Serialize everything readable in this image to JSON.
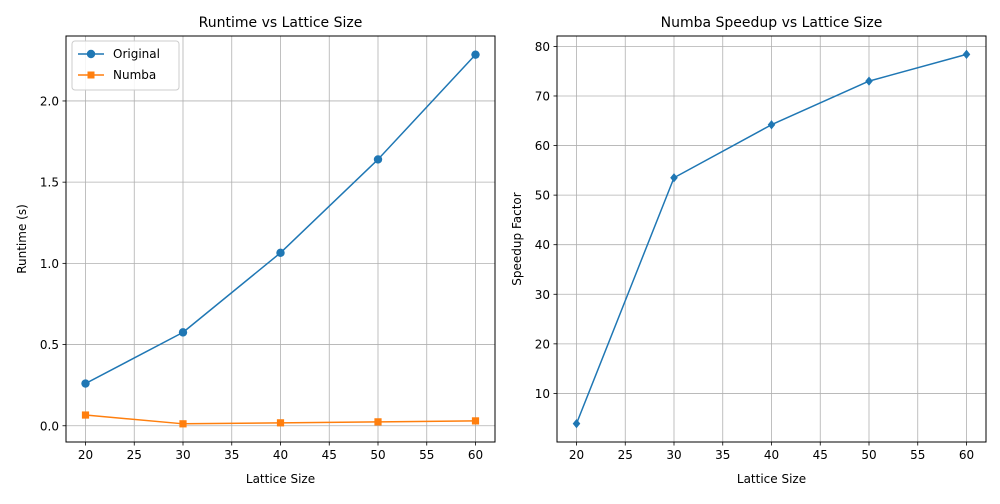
{
  "chart_data": [
    {
      "type": "line",
      "title": "Runtime vs Lattice Size",
      "xlabel": "Lattice Size",
      "ylabel": "Runtime (s)",
      "x": [
        20,
        30,
        40,
        50,
        60
      ],
      "series": [
        {
          "name": "Original",
          "values": [
            0.26,
            0.575,
            1.065,
            1.64,
            2.285
          ],
          "color": "#1f77b4",
          "marker": "circle"
        },
        {
          "name": "Numba",
          "values": [
            0.066,
            0.012,
            0.018,
            0.024,
            0.03
          ],
          "color": "#ff7f0e",
          "marker": "square"
        }
      ],
      "xlim": [
        18,
        62
      ],
      "ylim": [
        -0.1,
        2.4
      ],
      "xticks": [
        20,
        25,
        30,
        35,
        40,
        45,
        50,
        55,
        60
      ],
      "yticks": [
        0.0,
        0.5,
        1.0,
        1.5,
        2.0
      ],
      "ytick_labels": [
        "0.0",
        "0.5",
        "1.0",
        "1.5",
        "2.0"
      ],
      "grid": true,
      "legend": "upper-left"
    },
    {
      "type": "line",
      "title": "Numba Speedup vs Lattice Size",
      "xlabel": "Lattice Size",
      "ylabel": "Speedup Factor",
      "x": [
        20,
        30,
        40,
        50,
        60
      ],
      "series": [
        {
          "name": "",
          "values": [
            3.9,
            53.5,
            64.2,
            73.0,
            78.4
          ],
          "color": "#1f77b4",
          "marker": "diamond"
        }
      ],
      "xlim": [
        18,
        62
      ],
      "ylim": [
        0.2,
        82.1
      ],
      "xticks": [
        20,
        25,
        30,
        35,
        40,
        45,
        50,
        55,
        60
      ],
      "yticks": [
        10,
        20,
        30,
        40,
        50,
        60,
        70,
        80
      ],
      "ytick_labels": [
        "10",
        "20",
        "30",
        "40",
        "50",
        "60",
        "70",
        "80"
      ],
      "grid": true
    }
  ]
}
